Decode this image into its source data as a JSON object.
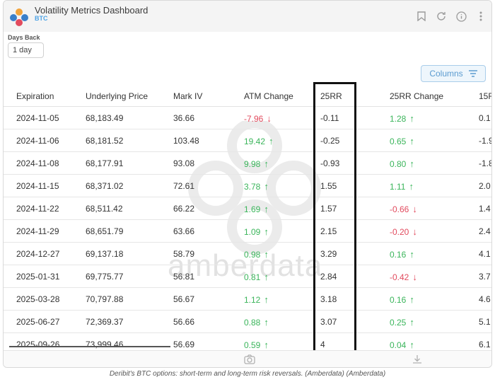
{
  "header": {
    "title": "Volatility Metrics Dashboard",
    "subtitle": "BTC",
    "icons": [
      "bookmark-icon",
      "refresh-icon",
      "info-icon",
      "more-icon"
    ]
  },
  "controls": {
    "days_back_label": "Days Back",
    "days_back_value": "1 day",
    "columns_label": "Columns"
  },
  "table": {
    "headers": [
      "Expiration",
      "Underlying Price",
      "Mark IV",
      "ATM Change",
      "25RR",
      "25RR Change",
      "15F"
    ],
    "rows": [
      {
        "expiration": "2024-11-05",
        "price": "68,183.49",
        "mark_iv": "36.66",
        "atm_change": "-7.96",
        "atm_dir": "down",
        "rr25": "-0.11",
        "rr25_change": "1.28",
        "rr25_dir": "up",
        "extra": "0.1"
      },
      {
        "expiration": "2024-11-06",
        "price": "68,181.52",
        "mark_iv": "103.48",
        "atm_change": "19.42",
        "atm_dir": "up",
        "rr25": "-0.25",
        "rr25_change": "0.65",
        "rr25_dir": "up",
        "extra": "-1.9"
      },
      {
        "expiration": "2024-11-08",
        "price": "68,177.91",
        "mark_iv": "93.08",
        "atm_change": "9.98",
        "atm_dir": "up",
        "rr25": "-0.93",
        "rr25_change": "0.80",
        "rr25_dir": "up",
        "extra": "-1.8"
      },
      {
        "expiration": "2024-11-15",
        "price": "68,371.02",
        "mark_iv": "72.61",
        "atm_change": "3.78",
        "atm_dir": "up",
        "rr25": "1.55",
        "rr25_change": "1.11",
        "rr25_dir": "up",
        "extra": "2.0"
      },
      {
        "expiration": "2024-11-22",
        "price": "68,511.42",
        "mark_iv": "66.22",
        "atm_change": "1.69",
        "atm_dir": "up",
        "rr25": "1.57",
        "rr25_change": "-0.66",
        "rr25_dir": "down",
        "extra": "1.4"
      },
      {
        "expiration": "2024-11-29",
        "price": "68,651.79",
        "mark_iv": "63.66",
        "atm_change": "1.09",
        "atm_dir": "up",
        "rr25": "2.15",
        "rr25_change": "-0.20",
        "rr25_dir": "down",
        "extra": "2.4"
      },
      {
        "expiration": "2024-12-27",
        "price": "69,137.18",
        "mark_iv": "58.79",
        "atm_change": "0.98",
        "atm_dir": "up",
        "rr25": "3.29",
        "rr25_change": "0.16",
        "rr25_dir": "up",
        "extra": "4.1"
      },
      {
        "expiration": "2025-01-31",
        "price": "69,775.77",
        "mark_iv": "56.81",
        "atm_change": "0.81",
        "atm_dir": "up",
        "rr25": "2.84",
        "rr25_change": "-0.42",
        "rr25_dir": "down",
        "extra": "3.7"
      },
      {
        "expiration": "2025-03-28",
        "price": "70,797.88",
        "mark_iv": "56.67",
        "atm_change": "1.12",
        "atm_dir": "up",
        "rr25": "3.18",
        "rr25_change": "0.16",
        "rr25_dir": "up",
        "extra": "4.6"
      },
      {
        "expiration": "2025-06-27",
        "price": "72,369.37",
        "mark_iv": "56.66",
        "atm_change": "0.88",
        "atm_dir": "up",
        "rr25": "3.07",
        "rr25_change": "0.25",
        "rr25_dir": "up",
        "extra": "5.1"
      },
      {
        "expiration": "2025-09-26",
        "price": "73,999.46",
        "mark_iv": "56.69",
        "atm_change": "0.59",
        "atm_dir": "up",
        "rr25": "4",
        "rr25_change": "0.04",
        "rr25_dir": "up",
        "extra": "6.1"
      }
    ]
  },
  "watermark": "amberdata",
  "caption": "Deribit's BTC options: short-term and long-term risk reversals. (Amberdata) (Amberdata)",
  "colors": {
    "up": "#3bb55b",
    "down": "#e24b5e",
    "accent": "#4da3e6"
  }
}
